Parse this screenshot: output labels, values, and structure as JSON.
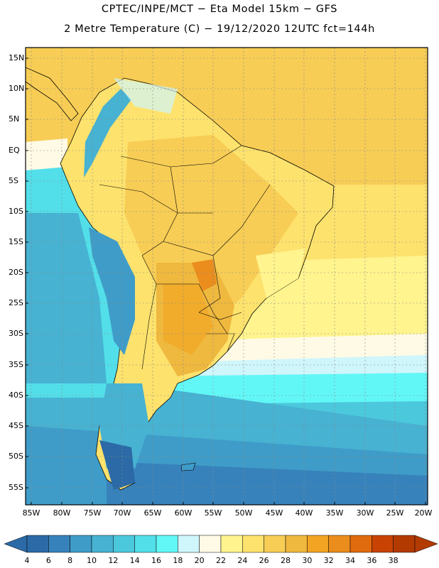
{
  "header": {
    "line1": "CPTEC/INPE/MCT −  Eta Model 15km − GFS",
    "line2": "2 Metre Temperature (C) − 19/12/2020 12UTC fct=144h"
  },
  "map": {
    "lat_labels": [
      "15N",
      "10N",
      "5N",
      "EQ",
      "5S",
      "10S",
      "15S",
      "20S",
      "25S",
      "30S",
      "35S",
      "40S",
      "45S",
      "50S",
      "55S"
    ],
    "lon_labels": [
      "85W",
      "80W",
      "75W",
      "70W",
      "65W",
      "60W",
      "55W",
      "50W",
      "45W",
      "40W",
      "35W",
      "30W",
      "25W",
      "20W"
    ]
  },
  "colorbar": {
    "ticks": [
      "4",
      "6",
      "8",
      "10",
      "12",
      "14",
      "16",
      "18",
      "20",
      "22",
      "24",
      "26",
      "28",
      "30",
      "32",
      "34",
      "36",
      "38"
    ],
    "colors": [
      "#2b6aa6",
      "#3782bb",
      "#3f9cc8",
      "#47b2d2",
      "#4cc8dc",
      "#52dfe9",
      "#62f7f7",
      "#cff6fb",
      "#fffae6",
      "#fff48e",
      "#fde26d",
      "#f7cd55",
      "#efb83e",
      "#f2a422",
      "#ea8d1d",
      "#e06a0e",
      "#c84303",
      "#b33a00"
    ]
  }
}
